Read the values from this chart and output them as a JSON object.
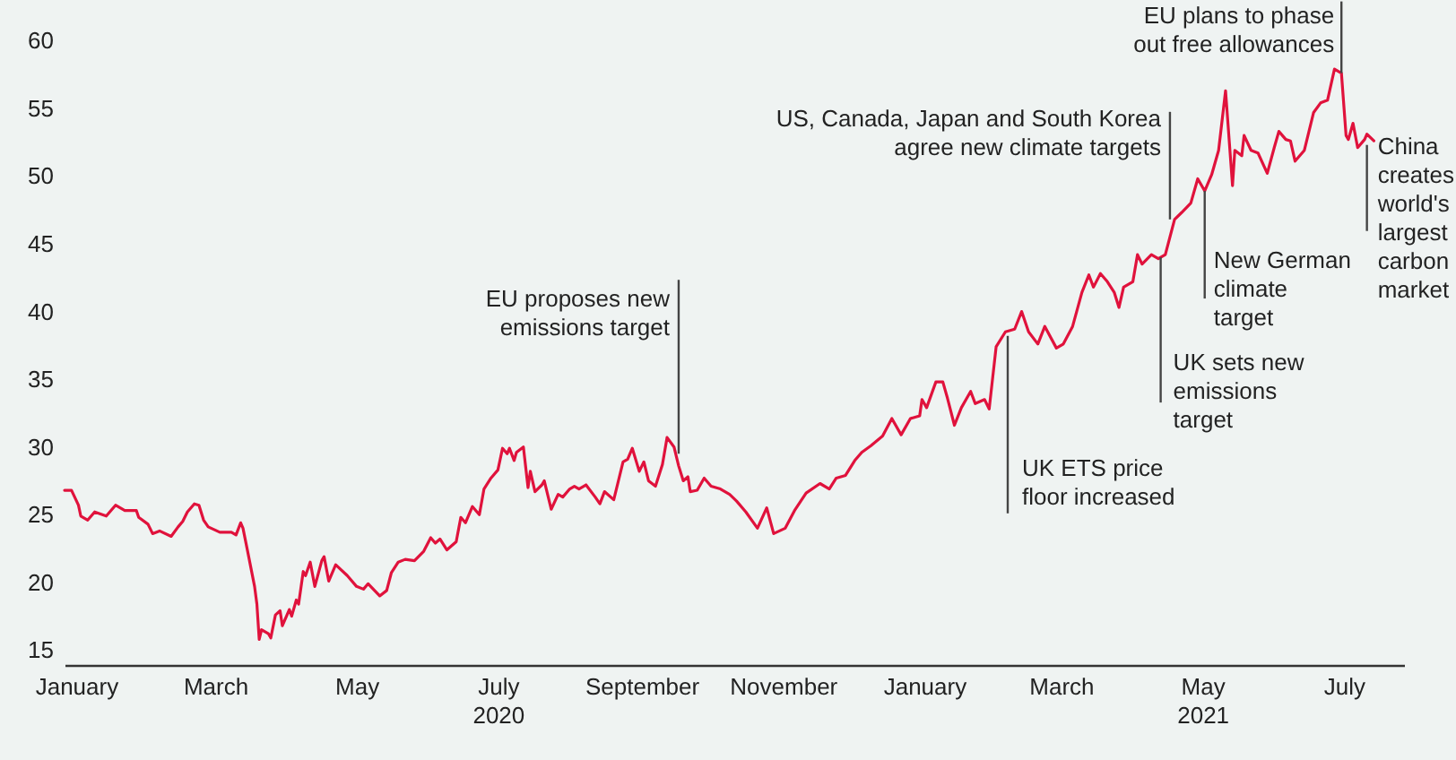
{
  "chart_data": {
    "type": "line",
    "x": [
      "2019-12-27",
      "2019-12-30",
      "2020-01-02",
      "2020-01-03",
      "2020-01-06",
      "2020-01-09",
      "2020-01-14",
      "2020-01-18",
      "2020-01-22",
      "2020-01-27",
      "2020-01-28",
      "2020-02-01",
      "2020-02-03",
      "2020-02-06",
      "2020-02-11",
      "2020-02-14",
      "2020-02-16",
      "2020-02-18",
      "2020-02-21",
      "2020-02-23",
      "2020-02-25",
      "2020-02-27",
      "2020-03-03",
      "2020-03-08",
      "2020-03-10",
      "2020-03-12",
      "2020-03-13",
      "2020-03-15",
      "2020-03-18",
      "2020-03-19",
      "2020-03-20",
      "2020-03-21",
      "2020-03-24",
      "2020-03-25",
      "2020-03-27",
      "2020-03-29",
      "2020-03-30",
      "2020-04-02",
      "2020-04-03",
      "2020-04-05",
      "2020-04-06",
      "2020-04-08",
      "2020-04-09",
      "2020-04-11",
      "2020-04-13",
      "2020-04-16",
      "2020-04-17",
      "2020-04-19",
      "2020-04-22",
      "2020-04-27",
      "2020-05-01",
      "2020-05-04",
      "2020-05-06",
      "2020-05-11",
      "2020-05-14",
      "2020-05-16",
      "2020-05-19",
      "2020-05-22",
      "2020-05-26",
      "2020-05-30",
      "2020-06-02",
      "2020-06-04",
      "2020-06-06",
      "2020-06-09",
      "2020-06-13",
      "2020-06-15",
      "2020-06-17",
      "2020-06-20",
      "2020-06-23",
      "2020-06-25",
      "2020-06-28",
      "2020-07-01",
      "2020-07-03",
      "2020-07-05",
      "2020-07-06",
      "2020-07-08",
      "2020-07-09",
      "2020-07-12",
      "2020-07-14",
      "2020-07-15",
      "2020-07-17",
      "2020-07-20",
      "2020-07-21",
      "2020-07-24",
      "2020-07-27",
      "2020-07-29",
      "2020-08-01",
      "2020-08-03",
      "2020-08-05",
      "2020-08-08",
      "2020-08-12",
      "2020-08-14",
      "2020-08-16",
      "2020-08-20",
      "2020-08-24",
      "2020-08-26",
      "2020-08-28",
      "2020-08-31",
      "2020-09-02",
      "2020-09-04",
      "2020-09-07",
      "2020-09-10",
      "2020-09-12",
      "2020-09-15",
      "2020-09-17",
      "2020-09-19",
      "2020-09-21",
      "2020-09-22",
      "2020-09-25",
      "2020-09-28",
      "2020-10-01",
      "2020-10-05",
      "2020-10-09",
      "2020-10-12",
      "2020-10-16",
      "2020-10-21",
      "2020-10-25",
      "2020-10-28",
      "2020-11-02",
      "2020-11-06",
      "2020-11-11",
      "2020-11-17",
      "2020-11-21",
      "2020-11-24",
      "2020-11-28",
      "2020-12-02",
      "2020-12-05",
      "2020-12-09",
      "2020-12-14",
      "2020-12-18",
      "2020-12-22",
      "2020-12-26",
      "2020-12-30",
      "2020-12-31",
      "2021-01-02",
      "2021-01-06",
      "2021-01-09",
      "2021-01-11",
      "2021-01-14",
      "2021-01-17",
      "2021-01-21",
      "2021-01-23",
      "2021-01-27",
      "2021-01-29",
      "2021-02-01",
      "2021-02-05",
      "2021-02-09",
      "2021-02-12",
      "2021-02-15",
      "2021-02-19",
      "2021-02-22",
      "2021-02-27",
      "2021-03-02",
      "2021-03-06",
      "2021-03-10",
      "2021-03-13",
      "2021-03-15",
      "2021-03-18",
      "2021-03-21",
      "2021-03-24",
      "2021-03-26",
      "2021-03-28",
      "2021-04-01",
      "2021-04-03",
      "2021-04-05",
      "2021-04-09",
      "2021-04-12",
      "2021-04-15",
      "2021-04-19",
      "2021-04-22",
      "2021-04-26",
      "2021-04-29",
      "2021-05-02",
      "2021-05-05",
      "2021-05-08",
      "2021-05-11",
      "2021-05-14",
      "2021-05-15",
      "2021-05-18",
      "2021-05-19",
      "2021-05-22",
      "2021-05-25",
      "2021-05-29",
      "2021-06-01",
      "2021-06-03",
      "2021-06-06",
      "2021-06-08",
      "2021-06-10",
      "2021-06-14",
      "2021-06-18",
      "2021-06-21",
      "2021-06-24",
      "2021-06-27",
      "2021-06-30",
      "2021-07-02",
      "2021-07-03",
      "2021-07-05",
      "2021-07-07",
      "2021-07-10",
      "2021-07-11",
      "2021-07-14"
    ],
    "series": [
      {
        "color": "#e0123c",
        "values": [
          26.8,
          26.8,
          25.7,
          24.9,
          24.6,
          25.2,
          24.9,
          25.7,
          25.3,
          25.3,
          24.8,
          24.3,
          23.6,
          23.8,
          23.4,
          24.1,
          24.5,
          25.2,
          25.8,
          25.7,
          24.6,
          24.1,
          23.7,
          23.7,
          23.5,
          24.4,
          24.0,
          22.3,
          19.7,
          18.4,
          15.8,
          16.5,
          16.2,
          15.9,
          17.6,
          17.9,
          16.8,
          18.0,
          17.5,
          18.7,
          18.4,
          20.8,
          20.5,
          21.5,
          19.7,
          21.6,
          21.9,
          20.1,
          21.3,
          20.5,
          19.7,
          19.5,
          19.9,
          19.0,
          19.4,
          20.7,
          21.5,
          21.7,
          21.6,
          22.3,
          23.3,
          22.9,
          23.2,
          22.4,
          23.0,
          24.8,
          24.4,
          25.6,
          25.0,
          26.9,
          27.7,
          28.3,
          29.9,
          29.5,
          29.9,
          29.0,
          29.6,
          30.0,
          27.0,
          28.2,
          26.7,
          27.2,
          27.5,
          25.4,
          26.5,
          26.3,
          26.9,
          27.1,
          26.9,
          27.2,
          26.3,
          25.8,
          26.7,
          26.1,
          28.9,
          29.1,
          29.9,
          28.2,
          28.9,
          27.5,
          27.1,
          28.7,
          30.7,
          30.0,
          28.6,
          27.5,
          27.8,
          26.7,
          26.8,
          27.7,
          27.1,
          26.9,
          26.5,
          26.0,
          25.2,
          24.0,
          25.5,
          23.6,
          24.0,
          25.3,
          26.6,
          27.3,
          26.9,
          27.7,
          27.9,
          29.0,
          29.6,
          30.1,
          30.8,
          32.1,
          30.9,
          32.1,
          32.3,
          33.5,
          32.9,
          34.8,
          34.8,
          33.6,
          31.6,
          32.9,
          34.1,
          33.2,
          33.5,
          32.8,
          37.4,
          38.5,
          38.7,
          40.0,
          38.5,
          37.6,
          38.9,
          37.3,
          37.6,
          38.9,
          41.4,
          42.7,
          41.8,
          42.8,
          42.2,
          41.4,
          40.3,
          41.8,
          42.2,
          44.2,
          43.5,
          44.2,
          43.9,
          44.2,
          46.8,
          47.3,
          48.0,
          49.8,
          48.9,
          50.1,
          51.9,
          56.3,
          49.3,
          51.9,
          51.5,
          53.0,
          51.9,
          51.7,
          50.2,
          52.1,
          53.3,
          52.7,
          52.6,
          51.1,
          51.9,
          54.7,
          55.4,
          55.6,
          57.9,
          57.6,
          53.0,
          52.7,
          53.9,
          52.1,
          52.7,
          53.1,
          52.6
        ]
      }
    ],
    "xlim": [
      "2019-12-27",
      "2021-07-27"
    ],
    "xticks": [
      {
        "value": "2020-01-01",
        "label": "January"
      },
      {
        "value": "2020-03-01",
        "label": "March"
      },
      {
        "value": "2020-05-01",
        "label": "May"
      },
      {
        "value": "2020-07-01",
        "label": "July\n2020"
      },
      {
        "value": "2020-09-01",
        "label": "September"
      },
      {
        "value": "2020-11-01",
        "label": "November"
      },
      {
        "value": "2021-01-01",
        "label": "January"
      },
      {
        "value": "2021-03-01",
        "label": "March"
      },
      {
        "value": "2021-05-01",
        "label": "May\n2021"
      },
      {
        "value": "2021-07-01",
        "label": "July"
      }
    ],
    "ylim": [
      13.9,
      63
    ],
    "yticks": [
      15,
      20,
      25,
      30,
      35,
      40,
      45,
      50,
      55,
      60
    ],
    "annotations": [
      {
        "text": "EU proposes new emissions target",
        "x": "2020-09-17",
        "y": 29.5
      },
      {
        "text": "UK ETS price floor increased",
        "x": "2021-02-06",
        "y": 38.2
      },
      {
        "text": "UK sets new emissions target",
        "x": "2021-04-13",
        "y": 44.0
      },
      {
        "text": "US, Canada, Japan and South Korea agree new climate targets",
        "x": "2021-04-17",
        "y": 46.8
      },
      {
        "text": "New German climate target",
        "x": "2021-05-02",
        "y": 48.9
      },
      {
        "text": "EU plans to phase out free allowances",
        "x": "2021-06-30",
        "y": 57.6
      },
      {
        "text": "China creates world's largest carbon market",
        "x": "2021-07-11",
        "y": 52.3
      }
    ]
  }
}
